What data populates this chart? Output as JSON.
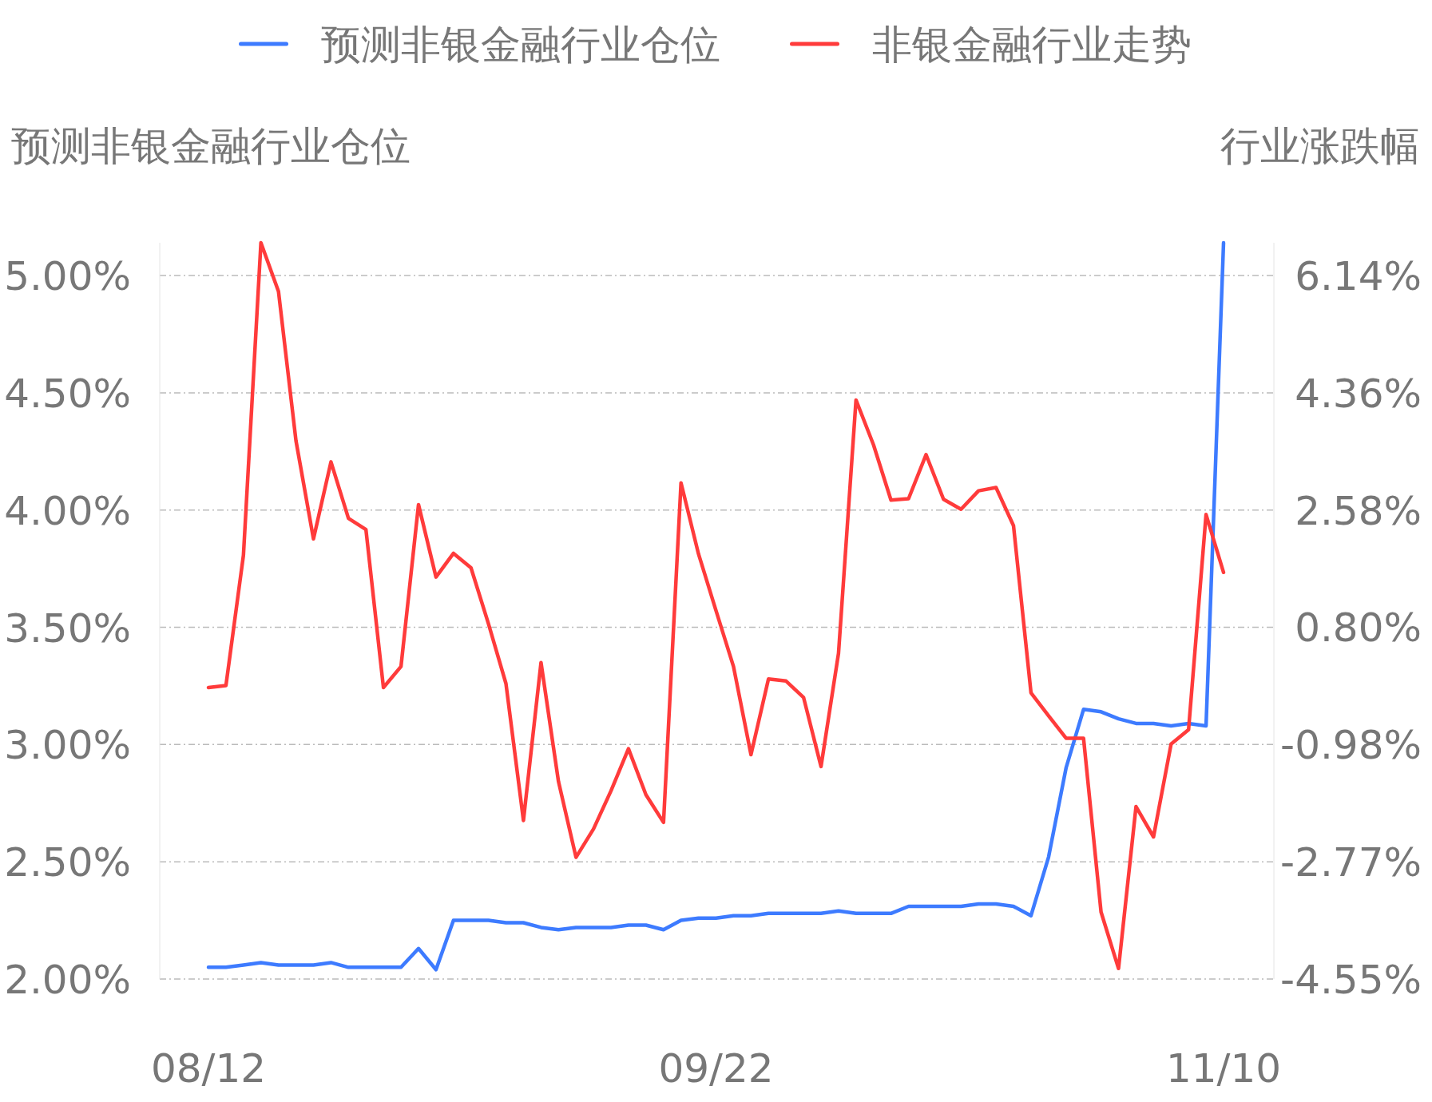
{
  "chart_data": {
    "type": "line",
    "ylabel": "预测非银金融行业仓位",
    "y2label": "行业涨跌幅",
    "categories": [
      "08/12",
      null,
      null,
      null,
      null,
      null,
      null,
      null,
      null,
      null,
      null,
      null,
      null,
      null,
      null,
      null,
      null,
      null,
      null,
      null,
      null,
      null,
      null,
      null,
      null,
      null,
      null,
      null,
      null,
      "09/22",
      null,
      null,
      null,
      null,
      null,
      null,
      null,
      null,
      null,
      null,
      null,
      null,
      null,
      null,
      null,
      null,
      null,
      null,
      null,
      null,
      null,
      null,
      null,
      null,
      null,
      null,
      null,
      null,
      "11/10"
    ],
    "ylim": [
      2,
      5.14
    ],
    "yticks": [
      {
        "value": 2,
        "label": "2.00%"
      },
      {
        "value": 2.5,
        "label": "2.50%"
      },
      {
        "value": 3,
        "label": "3.00%"
      },
      {
        "value": 3.5,
        "label": "3.50%"
      },
      {
        "value": 4,
        "label": "4.00%"
      },
      {
        "value": 4.5,
        "label": "4.50%"
      },
      {
        "value": 5,
        "label": "5.00%"
      }
    ],
    "y2lim": [
      -4.55,
      6.64
    ],
    "y2ticks": [
      {
        "value": -4.55,
        "label": "-4.55%"
      },
      {
        "value": -2.77,
        "label": "-2.77%"
      },
      {
        "value": -0.98,
        "label": "-0.98%"
      },
      {
        "value": 0.8,
        "label": "0.80%"
      },
      {
        "value": 2.58,
        "label": "2.58%"
      },
      {
        "value": 4.36,
        "label": "4.36%"
      },
      {
        "value": 6.14,
        "label": "6.14%"
      }
    ],
    "grid": "y",
    "legend": "top",
    "series": [
      {
        "name": "预测非银金融行业仓位",
        "color": "#3d7bff",
        "values": [
          2.05,
          2.05,
          2.06,
          2.07,
          2.06,
          2.06,
          2.06,
          2.07,
          2.05,
          2.05,
          2.05,
          2.05,
          2.13,
          2.04,
          2.25,
          2.25,
          2.25,
          2.24,
          2.24,
          2.22,
          2.21,
          2.22,
          2.22,
          2.22,
          2.23,
          2.23,
          2.21,
          2.25,
          2.26,
          2.26,
          2.27,
          2.27,
          2.28,
          2.28,
          2.28,
          2.28,
          2.29,
          2.28,
          2.28,
          2.28,
          2.31,
          2.31,
          2.31,
          2.31,
          2.32,
          2.32,
          2.31,
          2.27,
          2.52,
          2.9,
          3.15,
          3.14,
          3.11,
          3.09,
          3.09,
          3.08,
          3.09,
          3.08,
          5.14
        ]
      },
      {
        "name": "非银金融行业走势",
        "color": "#ff3b3b",
        "axis": "y2",
        "values": [
          -0.12,
          -0.09,
          1.89,
          6.64,
          5.9,
          3.63,
          2.14,
          3.31,
          2.45,
          2.28,
          -0.12,
          0.2,
          2.66,
          1.56,
          1.92,
          1.7,
          0.85,
          -0.06,
          -2.14,
          0.26,
          -1.55,
          -2.7,
          -2.27,
          -1.69,
          -1.05,
          -1.75,
          -2.17,
          2.99,
          1.91,
          1.05,
          0.2,
          -1.14,
          0.01,
          -0.02,
          -0.27,
          -1.32,
          0.4,
          4.25,
          3.57,
          2.73,
          2.75,
          3.42,
          2.74,
          2.59,
          2.87,
          2.92,
          2.34,
          -0.2,
          -0.55,
          -0.89,
          -0.89,
          -3.53,
          -4.39,
          -1.93,
          -2.39,
          -0.98,
          -0.76,
          2.51,
          1.63
        ]
      }
    ]
  }
}
